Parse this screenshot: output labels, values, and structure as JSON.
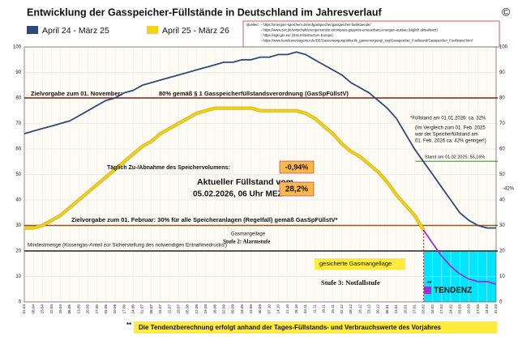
{
  "chart_data": {
    "type": "line",
    "title": "Entwicklung der Gasspeicher-Füllstände in Deutschland im Jahresverlauf",
    "copyright": "©",
    "categories": [
      "01.04",
      "08.04",
      "15.04",
      "22.04",
      "29.04",
      "06.05",
      "13.05",
      "20.05",
      "27.05",
      "03.06",
      "10.06",
      "17.06",
      "24.06",
      "01.07",
      "08.07",
      "15.07",
      "22.07",
      "29.07",
      "05.08",
      "12.08",
      "19.08",
      "26.08",
      "02.09",
      "09.09",
      "16.09",
      "23.09",
      "30.09",
      "07.10",
      "14.10",
      "21.10",
      "28.10",
      "04.11",
      "11.11",
      "18.11",
      "25.11",
      "02.12",
      "09.12",
      "16.12",
      "23.12",
      "30.12",
      "06.01",
      "13.01",
      "20.01",
      "27.01",
      "03.02",
      "10.02",
      "17.02",
      "24.02",
      "03.03",
      "10.03",
      "17.03",
      "24.03",
      "31.03"
    ],
    "series": [
      {
        "name": "April 24 - März 25",
        "color": "#2e4a7a",
        "values": [
          66,
          67,
          68,
          69,
          70,
          71,
          73,
          75,
          77,
          79,
          80,
          82,
          83,
          85,
          86,
          87,
          88,
          89,
          90,
          91,
          92,
          93,
          94,
          94,
          95,
          95,
          96,
          96,
          97,
          97,
          98,
          97,
          95,
          93,
          91,
          89,
          86,
          84,
          82,
          79,
          76,
          72,
          66,
          60,
          55,
          50,
          45,
          40,
          35,
          32,
          30,
          29,
          29
        ]
      },
      {
        "name": "April 25 - März 26",
        "color": "#f2d21b",
        "values": [
          29,
          29,
          30,
          32,
          34,
          37,
          40,
          43,
          46,
          49,
          52,
          55,
          58,
          61,
          63,
          66,
          68,
          70,
          72,
          74,
          75,
          76,
          76,
          76,
          76,
          76,
          75,
          75,
          75,
          75,
          75,
          74,
          72,
          69,
          66,
          62,
          59,
          57,
          54,
          51,
          47,
          42,
          38,
          34,
          28.2,
          null,
          null,
          null,
          null,
          null,
          null,
          null,
          null
        ]
      },
      {
        "name": "TENDENZ",
        "color": "#9b30d9",
        "values": [
          null,
          null,
          null,
          null,
          null,
          null,
          null,
          null,
          null,
          null,
          null,
          null,
          null,
          null,
          null,
          null,
          null,
          null,
          null,
          null,
          null,
          null,
          null,
          null,
          null,
          null,
          null,
          null,
          null,
          null,
          null,
          null,
          null,
          null,
          null,
          null,
          null,
          null,
          null,
          null,
          null,
          null,
          null,
          null,
          28.2,
          23,
          18,
          14,
          11,
          9,
          8,
          8,
          7
        ]
      }
    ],
    "ylim": [
      0,
      100
    ],
    "yticks": [
      0,
      10,
      20,
      30,
      40,
      50,
      60,
      70,
      80,
      90,
      100
    ],
    "grid": true,
    "reference_lines": [
      {
        "value": 80,
        "color": "#7b2020"
      },
      {
        "value": 30,
        "color": "#8b5a2b"
      },
      {
        "value": 20,
        "color": "#222222"
      },
      {
        "value": 55.16,
        "color": "#3cb043"
      }
    ],
    "sources": {
      "heading": "Quellen:",
      "lines": [
        "- https://energien-speichern.de/erdgasspeicher/gasspeicher-fuellstaende/",
        "- https://www.zeit.de/wirtschaft/energiemonitor-strompreis-gaspreis-erneuerbare-energien-ausbau (täglich aktualisiert)",
        "- https://agsi.gie.eu/ (Gas Infrastructure Europe)",
        "- https://www.bundesnetzagentur.de/DE/Gasversorgung/aktuelle_gasversorgung/_svg/Gasspeicher_Fuellstand/Gasspeicher_Fuellstand.html"
      ]
    },
    "annotations": {
      "target_nov": "Zielvorgabe zum 01. November:",
      "target_nov_rule": "80% gemäß § 1 Gasspeicherfüllstandsverordnung (GasSpFüllstV)",
      "jan_level": "*Füllstand am 01.01.2026: ca. 32%",
      "comparison": [
        "(Im Vergleich zum 01. Feb. 2025",
        "war der Speicherfüllstand am",
        "01. Feb. 2026 ca. 42% geringer!)"
      ],
      "feb_2025": "Stand am 01.02.2025: 55,16%",
      "difference": "-42%",
      "daily_change_label": "Täglich Zu-/Abnahme des Speichervolumens:",
      "daily_change": "-0,94%",
      "current_label": "Aktueller Füllstand vom",
      "current_date": "05.02.2026, 06 Uhr MEZ",
      "current_value": "28,2%",
      "target_feb": "Zielvorgabe zum 01. Februar: 30% für alle Speicheranlagen (Regelfall) gemäß GasSpFüllstV*",
      "shortage": "Gasmangellage",
      "stage2": "Stufe 2: Alarmstufe",
      "minimum": "Mindestmenge (Kissengas-Anteil zur Sicherstellung des notwendigen Entnahmedrucks!)",
      "secured_shortage": "gesicherte Gasmangellage",
      "stage3": "Stufe 3: Notfallstufe",
      "tendency_marker": "**",
      "footnote_marker": "**",
      "footnote": "Die Tendenzberechnung erfolgt anhand der Tages-Füllstands- und Verbrauchswerte des Vorjahres"
    }
  }
}
